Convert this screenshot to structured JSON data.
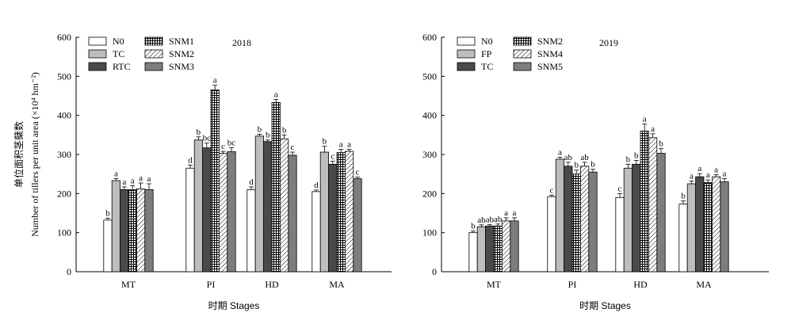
{
  "chart_data": [
    {
      "type": "bar",
      "title": "2018",
      "xlabel": "时期 Stages",
      "ylabel_cn": "单位面积茎蘖数",
      "ylabel_en": "Number of tillers per unit area (×10⁴ hm⁻²)",
      "ylim": [
        0,
        600
      ],
      "yticks": [
        "0",
        "100",
        "200",
        "300",
        "400",
        "500",
        "600"
      ],
      "categories": [
        "MT",
        "PI",
        "HD",
        "MA"
      ],
      "legend": {
        "placement": "top-left",
        "columns": 2
      },
      "series": [
        {
          "name": "N0",
          "pattern": "white",
          "values": [
            132,
            265,
            210,
            205
          ],
          "errors": [
            5,
            8,
            7,
            4
          ],
          "letters": [
            "b",
            "d",
            "d",
            "d"
          ]
        },
        {
          "name": "TC",
          "pattern": "lightgray",
          "values": [
            233,
            337,
            347,
            306
          ],
          "errors": [
            5,
            8,
            5,
            15
          ],
          "letters": [
            "a",
            "b",
            "b",
            "b"
          ]
        },
        {
          "name": "RTC",
          "pattern": "darkgray",
          "values": [
            210,
            317,
            333,
            275
          ],
          "errors": [
            7,
            12,
            4,
            8
          ],
          "letters": [
            "a",
            "bc",
            "b",
            "c"
          ]
        },
        {
          "name": "SNM1",
          "pattern": "grid",
          "values": [
            210,
            465,
            433,
            305
          ],
          "errors": [
            10,
            12,
            8,
            8
          ],
          "letters": [
            "a",
            "a",
            "a",
            "a"
          ]
        },
        {
          "name": "SNM2",
          "pattern": "hatch",
          "values": [
            212,
            303,
            340,
            308
          ],
          "errors": [
            15,
            5,
            10,
            5
          ],
          "letters": [
            "a",
            "c",
            "b",
            "a"
          ]
        },
        {
          "name": "SNM3",
          "pattern": "gray",
          "values": [
            210,
            307,
            298,
            238
          ],
          "errors": [
            15,
            10,
            8,
            4
          ],
          "letters": [
            "a",
            "bc",
            "c",
            "c"
          ]
        }
      ]
    },
    {
      "type": "bar",
      "title": "2019",
      "xlabel": "时期 Stages",
      "ylim": [
        0,
        600
      ],
      "yticks": [
        "0",
        "100",
        "200",
        "300",
        "400",
        "500",
        "600"
      ],
      "categories": [
        "MT",
        "PI",
        "HD",
        "MA"
      ],
      "legend": {
        "placement": "top-left",
        "columns": 2
      },
      "series": [
        {
          "name": "N0",
          "pattern": "white",
          "values": [
            100,
            192,
            190,
            173
          ],
          "errors": [
            4,
            4,
            10,
            8
          ],
          "letters": [
            "b",
            "c",
            "c",
            "b"
          ]
        },
        {
          "name": "FP",
          "pattern": "lightgray",
          "values": [
            115,
            288,
            265,
            225
          ],
          "errors": [
            5,
            5,
            10,
            7
          ],
          "letters": [
            "ab",
            "a",
            "b",
            "a"
          ]
        },
        {
          "name": "TC",
          "pattern": "darkgray",
          "values": [
            117,
            270,
            275,
            243
          ],
          "errors": [
            4,
            10,
            10,
            8
          ],
          "letters": [
            "ab",
            "ab",
            "b",
            "a"
          ]
        },
        {
          "name": "SNM2",
          "pattern": "grid",
          "values": [
            117,
            250,
            360,
            228
          ],
          "errors": [
            5,
            10,
            18,
            7
          ],
          "letters": [
            "ab",
            "b",
            "a",
            "a"
          ]
        },
        {
          "name": "SNM4",
          "pattern": "hatch",
          "values": [
            130,
            270,
            343,
            243
          ],
          "errors": [
            8,
            10,
            10,
            5
          ],
          "letters": [
            "a",
            "ab",
            "a",
            "a"
          ]
        },
        {
          "name": "SNM5",
          "pattern": "gray",
          "values": [
            130,
            255,
            303,
            230
          ],
          "errors": [
            8,
            7,
            12,
            8
          ],
          "letters": [
            "a",
            "b",
            "b",
            "a"
          ]
        }
      ]
    }
  ]
}
